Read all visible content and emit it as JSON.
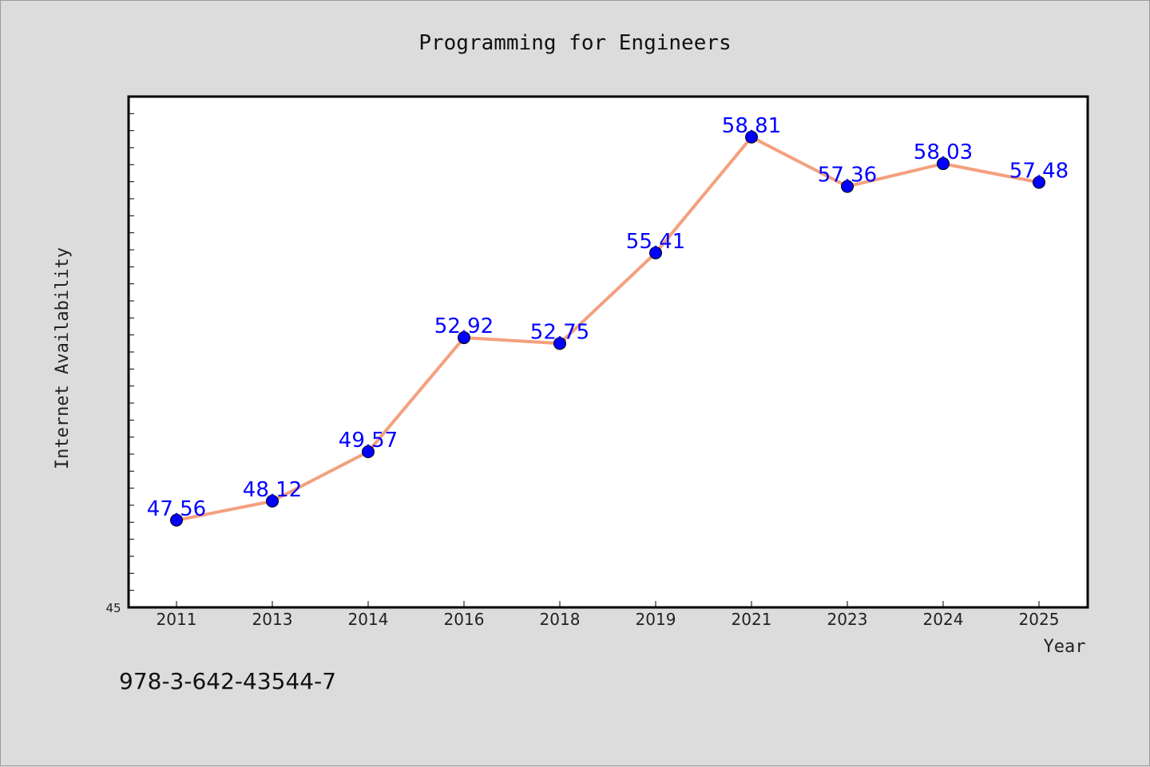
{
  "chart_data": {
    "type": "line",
    "title": "Programming for Engineers",
    "xlabel": "Year",
    "ylabel": "Internet Availability",
    "categories": [
      "2011",
      "2013",
      "2014",
      "2016",
      "2018",
      "2019",
      "2021",
      "2023",
      "2024",
      "2025"
    ],
    "series": [
      {
        "values": [
          47.56,
          48.12,
          49.57,
          52.92,
          52.75,
          55.41,
          58.81,
          57.36,
          58.03,
          57.48
        ],
        "labels": [
          "47.56",
          "48.12",
          "49.57",
          "52.92",
          "52.75",
          "55.41",
          "58.81",
          "57.36",
          "58.03",
          "57.48"
        ],
        "line_color": "#f4a07e",
        "marker_color": "#0000ff"
      }
    ],
    "ylim": [
      45,
      60
    ],
    "y_tick_label": "45",
    "grid": false,
    "legend": "none"
  },
  "footer": {
    "isbn": "978-3-642-43544-7"
  }
}
